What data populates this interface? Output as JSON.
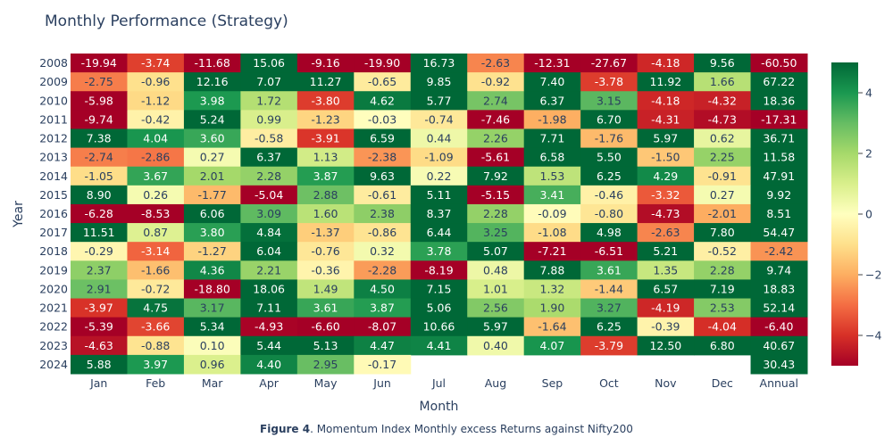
{
  "chart_data": {
    "type": "heatmap",
    "title": "Monthly Performance (Strategy)",
    "xlabel": "Month",
    "ylabel": "Year",
    "columns": [
      "Jan",
      "Feb",
      "Mar",
      "Apr",
      "May",
      "Jun",
      "Jul",
      "Aug",
      "Sep",
      "Oct",
      "Nov",
      "Dec",
      "Annual"
    ],
    "rows": [
      "2008",
      "2009",
      "2010",
      "2011",
      "2012",
      "2013",
      "2014",
      "2015",
      "2016",
      "2017",
      "2018",
      "2019",
      "2020",
      "2021",
      "2022",
      "2023",
      "2024"
    ],
    "values": [
      [
        -19.94,
        -3.74,
        -11.68,
        15.06,
        -9.16,
        -19.9,
        16.73,
        -2.63,
        -12.31,
        -27.67,
        -4.18,
        9.56,
        -60.5
      ],
      [
        -2.75,
        -0.96,
        12.16,
        7.07,
        11.27,
        -0.65,
        9.85,
        -0.92,
        7.4,
        -3.78,
        11.92,
        1.66,
        67.22
      ],
      [
        -5.98,
        -1.12,
        3.98,
        1.72,
        -3.8,
        4.62,
        5.77,
        2.74,
        6.37,
        3.15,
        -4.18,
        -4.32,
        18.36
      ],
      [
        -9.74,
        -0.42,
        5.24,
        0.99,
        -1.23,
        -0.03,
        -0.74,
        -7.46,
        -1.98,
        6.7,
        -4.31,
        -4.73,
        -17.31
      ],
      [
        7.38,
        4.04,
        3.6,
        -0.58,
        -3.91,
        6.59,
        0.44,
        2.26,
        7.71,
        -1.76,
        5.97,
        0.62,
        36.71
      ],
      [
        -2.74,
        -2.86,
        0.27,
        6.37,
        1.13,
        -2.38,
        -1.09,
        -5.61,
        6.58,
        5.5,
        -1.5,
        2.25,
        11.58
      ],
      [
        -1.05,
        3.67,
        2.01,
        2.28,
        3.87,
        9.63,
        0.22,
        7.92,
        1.53,
        6.25,
        4.29,
        -0.91,
        47.91
      ],
      [
        8.9,
        0.26,
        -1.77,
        -5.04,
        2.88,
        -0.61,
        5.11,
        -5.15,
        3.41,
        -0.46,
        -3.32,
        0.27,
        9.92
      ],
      [
        -6.28,
        -8.53,
        6.06,
        3.09,
        1.6,
        2.38,
        8.37,
        2.28,
        -0.09,
        -0.8,
        -4.73,
        -2.01,
        8.51
      ],
      [
        11.51,
        0.87,
        3.8,
        4.84,
        -1.37,
        -0.86,
        6.44,
        3.25,
        -1.08,
        4.98,
        -2.63,
        7.8,
        54.47
      ],
      [
        -0.29,
        -3.14,
        -1.27,
        6.04,
        -0.76,
        0.32,
        3.78,
        5.07,
        -7.21,
        -6.51,
        5.21,
        -0.52,
        -2.42
      ],
      [
        2.37,
        -1.66,
        4.36,
        2.21,
        -0.36,
        -2.28,
        -8.19,
        0.48,
        7.88,
        3.61,
        1.35,
        2.28,
        9.74
      ],
      [
        2.91,
        -0.72,
        -18.8,
        18.06,
        1.49,
        4.5,
        7.15,
        1.01,
        1.32,
        -1.44,
        6.57,
        7.19,
        18.83
      ],
      [
        -3.97,
        4.75,
        3.17,
        7.11,
        3.61,
        3.87,
        5.06,
        2.56,
        1.9,
        3.27,
        -4.19,
        2.53,
        52.14
      ],
      [
        -5.39,
        -3.66,
        5.34,
        -4.93,
        -6.6,
        -8.07,
        10.66,
        5.97,
        -1.64,
        6.25,
        -0.39,
        -4.04,
        -6.4
      ],
      [
        -4.63,
        -0.88,
        0.1,
        5.44,
        5.13,
        4.47,
        4.41,
        0.4,
        4.07,
        -3.79,
        12.5,
        6.8,
        40.67
      ],
      [
        5.88,
        3.97,
        0.96,
        4.4,
        2.95,
        -0.17,
        null,
        null,
        null,
        null,
        null,
        null,
        30.43
      ]
    ],
    "zmin": -5,
    "zmax": 5,
    "colorscale": "RdYlGn",
    "colorbar_ticks": [
      4,
      2,
      0,
      -2,
      -4
    ],
    "colorbar_tick_labels": [
      "4",
      "2",
      "0",
      "−2",
      "−4"
    ],
    "legend": "none",
    "grid": false
  },
  "caption": {
    "bold": "Figure 4",
    "text": ". Momentum Index Monthly excess Returns against Nifty200"
  }
}
